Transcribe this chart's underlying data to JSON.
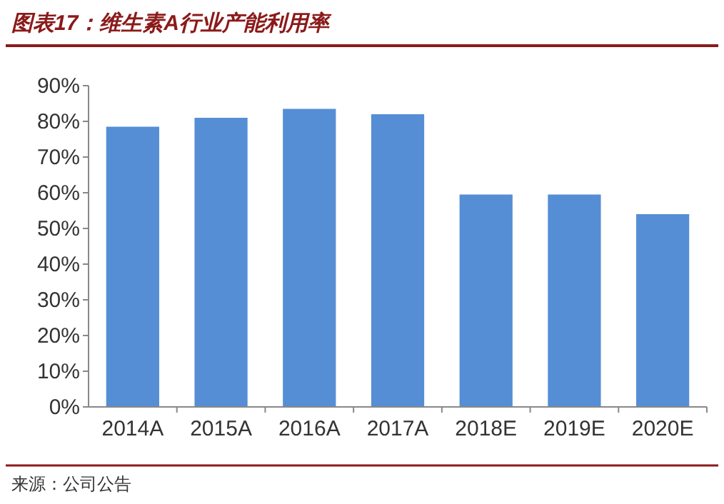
{
  "chart_data": {
    "type": "bar",
    "title": "图表17：维生素A行业产能利用率",
    "categories": [
      "2014A",
      "2015A",
      "2016A",
      "2017A",
      "2018E",
      "2019E",
      "2020E"
    ],
    "values": [
      78.5,
      81,
      83.5,
      82,
      59.5,
      59.5,
      54
    ],
    "color": "#558ed5",
    "ylim": [
      0,
      90
    ],
    "yticks": [
      {
        "value": 0,
        "label": "0%"
      },
      {
        "value": 10,
        "label": "10%"
      },
      {
        "value": 20,
        "label": "20%"
      },
      {
        "value": 30,
        "label": "30%"
      },
      {
        "value": 40,
        "label": "40%"
      },
      {
        "value": 50,
        "label": "50%"
      },
      {
        "value": 60,
        "label": "60%"
      },
      {
        "value": 70,
        "label": "70%"
      },
      {
        "value": 80,
        "label": "80%"
      },
      {
        "value": 90,
        "label": "90%"
      }
    ],
    "annotations": [
      "来源：公司公告"
    ]
  }
}
